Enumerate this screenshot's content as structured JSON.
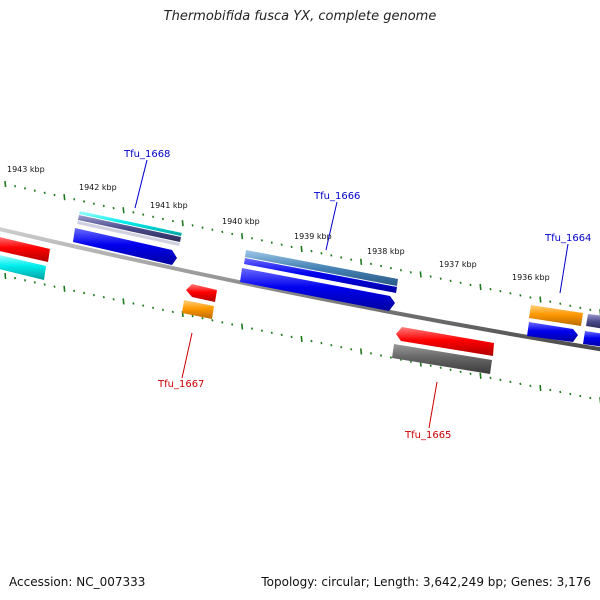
{
  "title": "Thermobifida fusca YX, complete genome",
  "footer": {
    "accession": "Accession: NC_007333",
    "summary": "Topology: circular; Length: 3,642,249 bp; Genes: 3,176"
  },
  "colors": {
    "backbone": "#8a8a8a",
    "ticks": "#1e7a1e",
    "forward_label": "#0000cc",
    "reverse_label": "#cc0000"
  },
  "kbp_labels": [
    "1943 kbp",
    "1942 kbp",
    "1941 kbp",
    "1940 kbp",
    "1939 kbp",
    "1938 kbp",
    "1937 kbp",
    "1936 kbp"
  ],
  "gene_labels": {
    "tfu_1668": "Tfu_1668",
    "tfu_1666": "Tfu_1666",
    "tfu_1664": "Tfu_1664",
    "tfu_1667": "Tfu_1667",
    "tfu_1665": "Tfu_1665"
  }
}
